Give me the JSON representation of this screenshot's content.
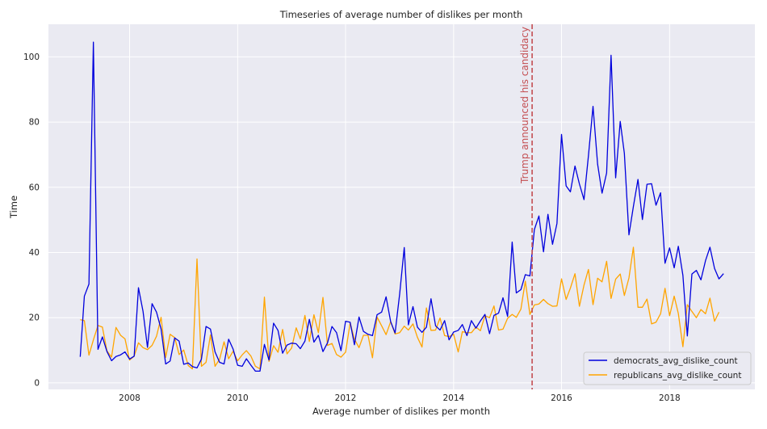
{
  "chart_data": {
    "type": "line",
    "title": "Timeseries of average number of dislikes per month",
    "xlabel": "Average number of dislikes per month",
    "ylabel": "Time",
    "xlim": [
      "2006-07-01",
      "2019-08-01"
    ],
    "ylim": [
      -2,
      110
    ],
    "x_ticks": [
      "2008-01-01",
      "2010-01-01",
      "2012-01-01",
      "2014-01-01",
      "2016-01-01",
      "2018-01-01"
    ],
    "x_tick_labels": [
      "2008",
      "2010",
      "2012",
      "2014",
      "2016",
      "2018"
    ],
    "y_ticks": [
      0,
      20,
      40,
      60,
      80,
      100
    ],
    "y_tick_labels": [
      "0",
      "20",
      "40",
      "60",
      "80",
      "100"
    ],
    "grid": true,
    "background": "#eaeaf2",
    "legend_position": "lower-right",
    "annotation": {
      "x": "2015-06-16",
      "text": "Trump announced his candidacy",
      "color": "#c44e52"
    },
    "start_month": "2007-02",
    "series": [
      {
        "name": "democrats_avg_dislike_count",
        "color": "#0000dd",
        "values": [
          8.0,
          26.6,
          30.3,
          104.5,
          10.3,
          14.1,
          9.6,
          6.8,
          8.1,
          8.6,
          9.5,
          7.3,
          8.2,
          29.2,
          21.9,
          10.9,
          24.3,
          21.7,
          16.5,
          5.8,
          6.7,
          13.8,
          12.8,
          5.7,
          6.1,
          5.0,
          4.6,
          7.3,
          17.3,
          16.5,
          9.5,
          6.3,
          5.8,
          13.4,
          10.4,
          5.4,
          5.1,
          7.4,
          5.4,
          3.6,
          3.6,
          11.8,
          7.0,
          18.3,
          16.1,
          9.1,
          11.6,
          12.2,
          12.0,
          10.5,
          12.8,
          19.5,
          12.5,
          14.6,
          9.6,
          12.3,
          17.3,
          15.4,
          9.9,
          18.9,
          18.6,
          11.7,
          20.2,
          15.8,
          14.9,
          14.5,
          20.9,
          21.7,
          26.4,
          18.8,
          15.3,
          27.3,
          41.5,
          17.8,
          23.4,
          17.1,
          15.5,
          17.1,
          25.8,
          17.5,
          16.2,
          19.1,
          13.2,
          15.6,
          16.1,
          17.9,
          14.5,
          19.1,
          16.8,
          19.0,
          21.0,
          15.1,
          20.7,
          21.4,
          26.1,
          20.4,
          43.2,
          27.6,
          28.6,
          33.2,
          32.8,
          47.0,
          51.2,
          40.2,
          51.7,
          42.5,
          48.9,
          76.2,
          60.4,
          58.6,
          66.5,
          61.0,
          56.2,
          69.7,
          84.8,
          67.1,
          58.2,
          64.4,
          100.5,
          62.9,
          80.2,
          70.4,
          45.4,
          54.1,
          62.4,
          50.1,
          60.9,
          61.1,
          54.5,
          58.3,
          36.7,
          41.4,
          35.3,
          41.9,
          33.0,
          14.4,
          33.4,
          34.5,
          31.6,
          37.5,
          41.6,
          35.1,
          31.9,
          33.5
        ]
      },
      {
        "name": "republicans_avg_dislike_count",
        "color": "#ffa500",
        "values": [
          19.4,
          19.1,
          8.5,
          13.2,
          17.6,
          17.1,
          9.8,
          7.9,
          17.0,
          14.6,
          13.5,
          7.0,
          8.2,
          12.3,
          10.8,
          10.2,
          11.5,
          14.3,
          20.1,
          7.8,
          14.9,
          13.9,
          8.7,
          10.1,
          5.3,
          4.3,
          38.0,
          5.1,
          6.3,
          14.7,
          5.1,
          7.3,
          12.6,
          7.4,
          9.7,
          6.8,
          8.6,
          9.9,
          8.2,
          5.1,
          4.3,
          26.3,
          6.6,
          11.4,
          9.4,
          16.4,
          8.9,
          10.7,
          16.9,
          13.5,
          20.7,
          12.7,
          20.9,
          15.4,
          26.2,
          11.5,
          12.1,
          8.7,
          7.9,
          9.4,
          18.4,
          13.4,
          10.8,
          14.6,
          14.6,
          7.7,
          20.2,
          17.5,
          14.8,
          18.8,
          15.0,
          15.4,
          17.4,
          16.2,
          18.1,
          14.0,
          11.0,
          23.0,
          16.1,
          16.2,
          19.9,
          14.5,
          14.2,
          14.9,
          9.5,
          15.7,
          15.4,
          15.4,
          17.1,
          16.0,
          20.6,
          20.0,
          23.6,
          16.2,
          16.5,
          19.8,
          21.0,
          20.1,
          22.6,
          31.2,
          21.0,
          23.9,
          24.2,
          25.6,
          24.3,
          23.5,
          23.6,
          31.9,
          25.6,
          29.1,
          33.5,
          23.5,
          30.0,
          34.8,
          24.0,
          32.1,
          31.0,
          37.3,
          25.9,
          31.8,
          33.4,
          26.8,
          32.2,
          41.6,
          23.2,
          23.2,
          25.7,
          18.1,
          18.6,
          21.2,
          29.0,
          20.6,
          26.6,
          21.3,
          11.1,
          24.0,
          21.9,
          20.0,
          22.5,
          21.2,
          26.0,
          18.9,
          21.7
        ]
      }
    ]
  }
}
